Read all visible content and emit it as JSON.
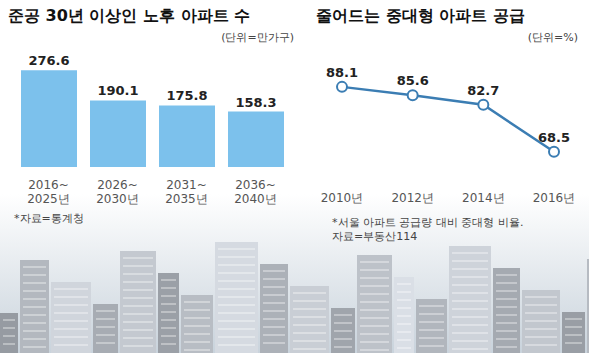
{
  "chart_data": [
    {
      "type": "bar",
      "title": "준공 30년 이상인 노후 아파트 수",
      "subtitle": "(단위=만가구)",
      "categories": [
        "2016~2025년",
        "2026~2030년",
        "2031~2035년",
        "2036~2040년"
      ],
      "values": [
        276.6,
        190.1,
        175.8,
        158.3
      ],
      "color": "#7cc1ec",
      "ylim": [
        0,
        300
      ],
      "data_labels": true,
      "tick_labels": "x",
      "notes": [
        "*자료=통계청"
      ]
    },
    {
      "type": "line",
      "title": "줄어드는 중대형 아파트 공급",
      "subtitle": "(단위=%)",
      "categories": [
        "2010년",
        "2012년",
        "2014년",
        "2016년"
      ],
      "values": [
        88.1,
        85.6,
        82.7,
        68.5
      ],
      "color": "#3b7db3",
      "marker": "circle",
      "ylim": [
        60,
        95
      ],
      "data_labels": true,
      "tick_labels": "x",
      "notes": [
        "*서울 아파트 공급량 대비 중대형 비율.",
        "자료=부동산114"
      ]
    }
  ]
}
